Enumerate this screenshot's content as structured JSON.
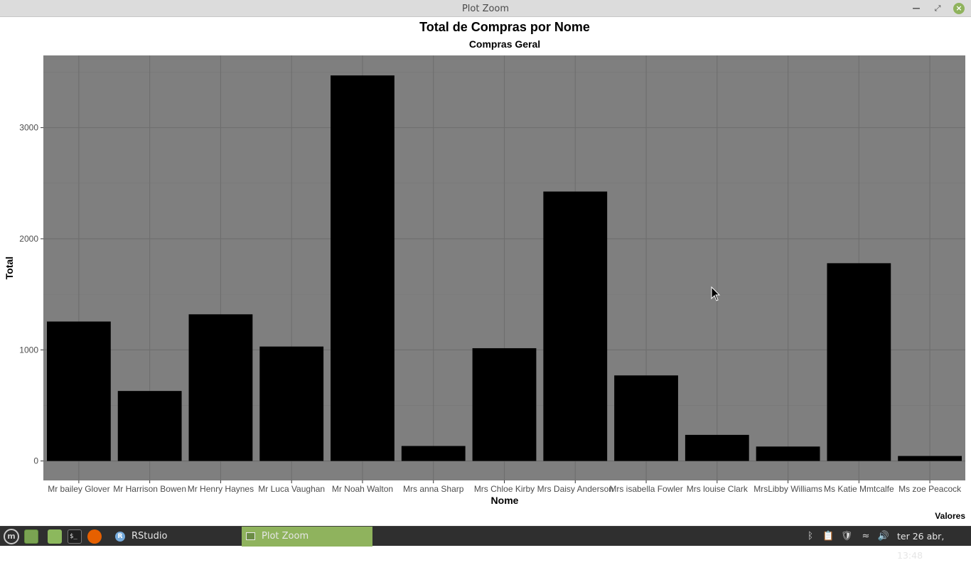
{
  "window": {
    "title": "Plot Zoom"
  },
  "chart_data": {
    "type": "bar",
    "title": "Total de Compras por Nome",
    "subtitle": "Compras Geral",
    "xlabel": "Nome",
    "ylabel": "Total",
    "caption": "Valores",
    "categories": [
      "Mr bailey Glover",
      "Mr Harrison Bowen",
      "Mr Henry Haynes",
      "Mr Luca Vaughan",
      "Mr Noah Walton",
      "Mrs anna Sharp",
      "Mrs Chloe Kirby",
      "Mrs Daisy Anderson",
      "Mrs isabella Fowler",
      "Mrs louise Clark",
      "MrsLibby Williams",
      "Ms Katie Mmtcalfe",
      "Ms zoe Peacock"
    ],
    "values": [
      1255,
      630,
      1320,
      1030,
      3470,
      135,
      1015,
      2425,
      770,
      235,
      130,
      1780,
      45
    ],
    "ylim": [
      -175,
      3650
    ],
    "yticks": [
      0,
      1000,
      2000,
      3000
    ],
    "ytick_labels": [
      "0",
      "1000",
      "2000",
      "3000"
    ],
    "grid": true,
    "colors": {
      "panel": "#7f7f7f",
      "bar": "#000000",
      "grid_major": "#6e6e6e",
      "grid_minor": "#777777"
    }
  },
  "taskbar": {
    "tasks": [
      {
        "label": "RStudio",
        "icon": "rstudio-icon"
      },
      {
        "label": "Plot Zoom",
        "icon": "window-icon",
        "active": true
      }
    ],
    "clock": "ter 26 abr, 13:48"
  }
}
